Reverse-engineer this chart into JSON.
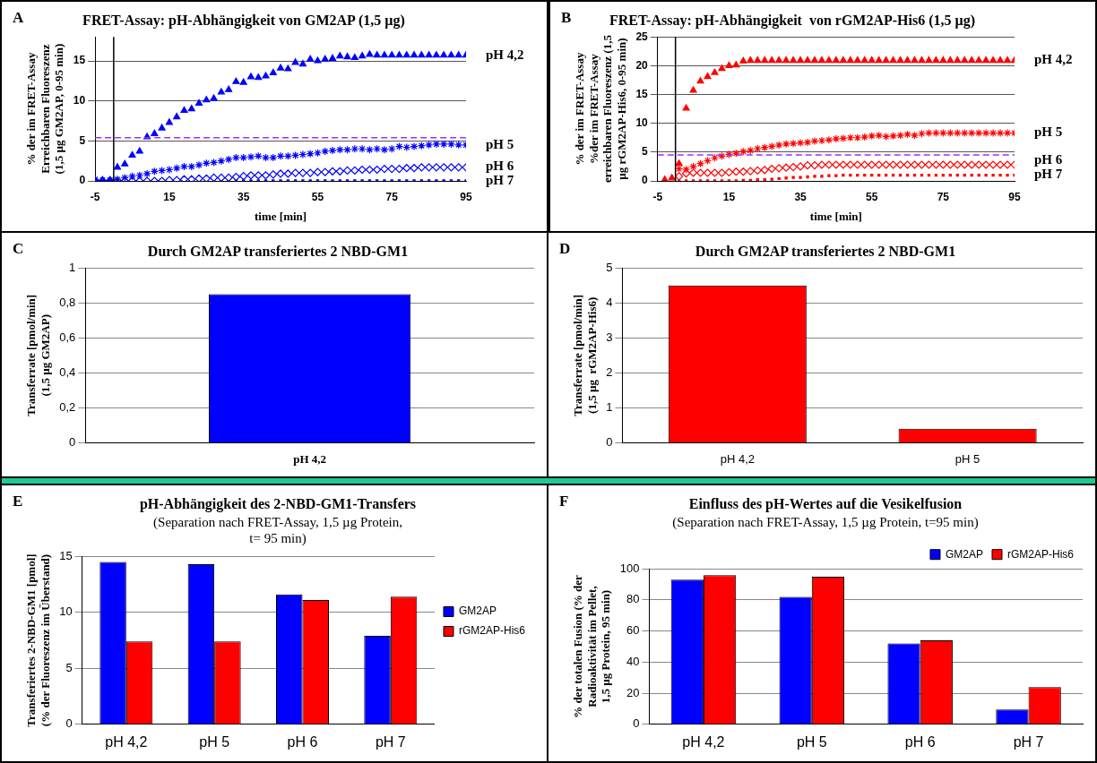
{
  "chart_data": [
    {
      "type": "scatter",
      "title": "FRET-Assay: pH-Abhängigkeit von GM2AP (1,5 µg)",
      "xlabel": "time [min]",
      "ylabel": "% der im FRET-Assay\nErreichbaren Fluoreszenz\n(1,5 µg GM2AP, 0-95 min)",
      "annotations": [
        "A"
      ],
      "x": [
        -5,
        -3,
        -1,
        1,
        3,
        5,
        7,
        9,
        11,
        13,
        15,
        17,
        19,
        21,
        23,
        25,
        27,
        29,
        31,
        33,
        35,
        37,
        39,
        41,
        43,
        45,
        47,
        49,
        51,
        53,
        55,
        57,
        59,
        61,
        63,
        65,
        67,
        69,
        71,
        73,
        75,
        77,
        79,
        81,
        83,
        85,
        87,
        89,
        91,
        93,
        95
      ],
      "series": [
        {
          "name": "pH 4,2",
          "color": "#0000ff",
          "marker": "triangle",
          "values": [
            0.1,
            0.1,
            0.1,
            1.7,
            2.1,
            3.2,
            3.7,
            5.5,
            5.9,
            6.6,
            7.3,
            8.0,
            8.8,
            9.0,
            9.7,
            10.1,
            10.3,
            11.1,
            11.4,
            12.4,
            12.3,
            13.0,
            12.9,
            13.1,
            13.5,
            14.1,
            14.0,
            14.8,
            14.6,
            15.2,
            15.0,
            15.2,
            15.3,
            15.6,
            15.5,
            15.4,
            15.6,
            15.8,
            15.7,
            15.7,
            15.7,
            15.7,
            15.7,
            15.7,
            15.7,
            15.7,
            15.7,
            15.7,
            15.7,
            15.7,
            15.7
          ]
        },
        {
          "name": "pH 5",
          "color": "#0000ff",
          "marker": "cross",
          "values": [
            0.2,
            0.1,
            0.1,
            0.2,
            0.4,
            0.6,
            0.7,
            0.9,
            1.2,
            1.3,
            1.4,
            1.6,
            1.8,
            1.8,
            2.0,
            2.2,
            2.3,
            2.5,
            2.7,
            2.9,
            2.9,
            3.0,
            3.1,
            2.9,
            2.9,
            3.1,
            3.1,
            3.2,
            3.3,
            3.4,
            3.5,
            3.7,
            3.8,
            3.9,
            3.9,
            4.0,
            4.0,
            3.9,
            4.0,
            3.9,
            4.0,
            4.3,
            4.2,
            4.3,
            4.4,
            4.5,
            4.6,
            4.6,
            4.6,
            4.5,
            4.5
          ]
        },
        {
          "name": "pH 6",
          "color": "#0000ff",
          "marker": "diamond",
          "values": [
            0,
            0,
            0,
            0,
            0,
            0,
            0,
            0,
            0,
            0,
            0.1,
            0.1,
            0.2,
            0.2,
            0.3,
            0.3,
            0.4,
            0.4,
            0.4,
            0.5,
            0.6,
            0.7,
            0.7,
            0.7,
            0.8,
            0.9,
            0.9,
            1.0,
            1.0,
            1.0,
            1.1,
            1.1,
            1.2,
            1.2,
            1.3,
            1.3,
            1.4,
            1.4,
            1.4,
            1.5,
            1.5,
            1.5,
            1.6,
            1.6,
            1.7,
            1.7,
            1.7,
            1.7,
            1.7,
            1.7,
            1.7
          ]
        },
        {
          "name": "pH 7",
          "color": "#0000ff",
          "marker": "square",
          "values": [
            null,
            null,
            null,
            null,
            null,
            null,
            null,
            null,
            null,
            null,
            null,
            null,
            null,
            null,
            null,
            null,
            0,
            0,
            0,
            0,
            0,
            0,
            0,
            0,
            0,
            0,
            0,
            0,
            0,
            0,
            0,
            0,
            0,
            0,
            0,
            0,
            0,
            0,
            0,
            0,
            0,
            0,
            0,
            0,
            0,
            0,
            0,
            0,
            0,
            0,
            0
          ]
        }
      ],
      "xlim": [
        -5,
        95
      ],
      "xticks": [
        -5,
        15,
        35,
        55,
        75,
        95
      ],
      "ylim": [
        0,
        18
      ],
      "yticks": [
        0,
        5,
        10,
        15
      ],
      "grid": "y",
      "ref_lines": [
        {
          "axis": "y",
          "value": 5.4,
          "color": "#9b30ff",
          "line_style": "dashed"
        },
        {
          "axis": "x",
          "value": 0,
          "color": "#000000"
        }
      ]
    },
    {
      "type": "scatter",
      "title": "FRET-Assay: pH-Abhängigkeit  von rGM2AP-His6 (1,5 µg)",
      "xlabel": "time [min]",
      "ylabel": "% der im FRET-Assay\n%der im FRET-Assay\nerreichbaren Fluoreszenz (1,5\nµg rGM2AP-His6, 0-95 min)",
      "annotations": [
        "B"
      ],
      "x": [
        -3,
        -1,
        1,
        3,
        5,
        7,
        9,
        11,
        13,
        15,
        17,
        19,
        21,
        23,
        25,
        27,
        29,
        31,
        33,
        35,
        37,
        39,
        41,
        43,
        45,
        47,
        49,
        51,
        53,
        55,
        57,
        59,
        61,
        63,
        65,
        67,
        69,
        71,
        73,
        75,
        77,
        79,
        81,
        83,
        85,
        87,
        89,
        91,
        93,
        95
      ],
      "series": [
        {
          "name": "pH 4,2",
          "color": "#ff0000",
          "marker": "triangle",
          "values": [
            0.2,
            0.5,
            3.0,
            12.6,
            15.7,
            17.3,
            18.1,
            18.8,
            19.5,
            20.0,
            20.1,
            20.8,
            20.9,
            20.9,
            20.9,
            20.9,
            20.9,
            20.9,
            20.9,
            20.9,
            20.9,
            20.9,
            20.9,
            20.9,
            20.9,
            20.9,
            20.9,
            20.9,
            20.9,
            20.9,
            20.9,
            20.9,
            20.9,
            20.9,
            20.9,
            20.9,
            20.9,
            20.9,
            20.9,
            20.9,
            20.9,
            20.9,
            20.9,
            20.9,
            20.9,
            20.9,
            20.9,
            20.9,
            20.9,
            20.9
          ]
        },
        {
          "name": "pH 5",
          "color": "#ff0000",
          "marker": "cross",
          "values": [
            null,
            null,
            2.1,
            2.0,
            2.5,
            3.0,
            3.5,
            4.0,
            4.3,
            4.6,
            4.8,
            5.1,
            5.3,
            5.6,
            5.8,
            6.0,
            6.2,
            6.4,
            6.5,
            6.6,
            6.7,
            6.9,
            7.0,
            7.1,
            7.3,
            7.4,
            7.5,
            7.5,
            7.6,
            7.8,
            7.9,
            7.7,
            7.8,
            7.9,
            8.1,
            7.9,
            8.2,
            8.3,
            8.3,
            8.3,
            8.3,
            8.3,
            8.3,
            8.3,
            8.3,
            8.3,
            8.3,
            8.3,
            8.3,
            8.3
          ]
        },
        {
          "name": "pH 6",
          "color": "#ff0000",
          "marker": "diamond",
          "values": [
            null,
            null,
            0.8,
            1.3,
            1.4,
            1.4,
            1.4,
            1.4,
            1.4,
            1.5,
            1.6,
            1.6,
            1.7,
            1.8,
            1.9,
            2.1,
            2.2,
            2.3,
            2.4,
            2.5,
            2.7,
            2.7,
            2.8,
            2.8,
            2.8,
            2.8,
            2.8,
            2.8,
            2.8,
            2.8,
            2.8,
            2.8,
            2.8,
            2.8,
            2.8,
            2.8,
            2.8,
            2.8,
            2.8,
            2.8,
            2.8,
            2.8,
            2.8,
            2.8,
            2.8,
            2.8,
            2.8,
            2.8,
            2.8,
            2.8
          ]
        },
        {
          "name": "pH 7",
          "color": "#ff0000",
          "marker": "square",
          "values": [
            null,
            null,
            0,
            0,
            0,
            0,
            0,
            0,
            0,
            0.0,
            0.0,
            0.1,
            0.1,
            0.2,
            0.2,
            0.3,
            0.4,
            0.5,
            0.6,
            0.6,
            0.7,
            0.8,
            0.8,
            0.9,
            0.9,
            1.0,
            1.0,
            1.0,
            1.0,
            1.0,
            1.0,
            1.0,
            1.0,
            1.0,
            1.0,
            1.0,
            1.0,
            1.0,
            1.0,
            1.0,
            1.0,
            1.0,
            1.0,
            1.0,
            1.0,
            1.0,
            1.0,
            1.0,
            1.0,
            1.0
          ]
        }
      ],
      "xlim": [
        -5,
        95
      ],
      "xticks": [
        -5,
        15,
        35,
        55,
        75,
        95
      ],
      "ylim": [
        0,
        25
      ],
      "yticks": [
        0,
        5,
        10,
        15,
        20,
        25
      ],
      "grid": "y",
      "ref_lines": [
        {
          "axis": "y",
          "value": 4.5,
          "color": "#9b30ff",
          "line_style": "dashed"
        },
        {
          "axis": "x",
          "value": 0,
          "color": "#000000"
        }
      ]
    },
    {
      "type": "bar",
      "title": "Durch GM2AP transferiertes 2 NBD-GM1",
      "ylabel": "Transferrate [pmol/min]\n(1,5 µg GM2AP)",
      "annotations": [
        "C"
      ],
      "categories": [
        "pH 4,2"
      ],
      "values": [
        0.85
      ],
      "color": "#0000ff",
      "ylim": [
        0,
        1
      ],
      "yticks": [
        0,
        {
          "value": 0.2,
          "label": "0,2"
        },
        {
          "value": 0.4,
          "label": "0,4"
        },
        {
          "value": 0.6,
          "label": "0,6"
        },
        {
          "value": 0.8,
          "label": "0,8"
        },
        1
      ],
      "grid": "y"
    },
    {
      "type": "bar",
      "title": "Durch GM2AP transferiertes 2 NBD-GM1",
      "ylabel": "Transferrate [pmol/min]\n(1,5 µg  rGM2AP-His6)",
      "annotations": [
        "D"
      ],
      "categories": [
        "pH 4,2",
        "pH 5"
      ],
      "values": [
        4.5,
        0.4
      ],
      "color": "#ff0000",
      "ylim": [
        0,
        5
      ],
      "yticks": [
        0,
        1,
        2,
        3,
        4,
        5
      ],
      "grid": "y"
    },
    {
      "type": "bar",
      "title": "pH-Abhängigkeit des 2-NBD-GM1-Transfers",
      "subtitle": "(Separation nach FRET-Assay, 1,5 µg Protein,\nt= 95 min)",
      "ylabel": "Transferiertes 2-NBD-GM1 [pmol]\n(% der Fluoreszenz im Überstand)",
      "annotations": [
        "E"
      ],
      "categories": [
        "pH 4,2",
        "pH 5",
        "pH 6",
        "pH 7"
      ],
      "series": [
        {
          "name": "GM2AP",
          "color": "#0000ff",
          "values": [
            14.5,
            14.3,
            11.6,
            7.9
          ]
        },
        {
          "name": "rGM2AP-His6",
          "color": "#ff0000",
          "values": [
            7.4,
            7.4,
            11.1,
            11.4
          ]
        }
      ],
      "ylim": [
        0,
        15
      ],
      "yticks": [
        0,
        5,
        10,
        15
      ],
      "grid": "y",
      "legend": "right"
    },
    {
      "type": "bar",
      "title": "Einfluss des pH-Wertes auf die Vesikelfusion",
      "subtitle": "(Separation nach FRET-Assay, 1,5 µg Protein, t=95 min)",
      "ylabel": "% der totalen Fusion (% der\nRadioaktivität im Pellet,\n1,5 µg Protein, 95 min)",
      "annotations": [
        "F"
      ],
      "categories": [
        "pH 4,2",
        "pH 5",
        "pH 6",
        "pH 7"
      ],
      "series": [
        {
          "name": "GM2AP",
          "color": "#0000ff",
          "values": [
            93,
            82,
            52,
            9.5
          ]
        },
        {
          "name": "rGM2AP-His6",
          "color": "#ff0000",
          "values": [
            96,
            95,
            54,
            24
          ]
        }
      ],
      "ylim": [
        0,
        100
      ],
      "yticks": [
        0,
        20,
        40,
        60,
        80,
        100
      ],
      "grid": "y",
      "legend": "top right"
    }
  ]
}
